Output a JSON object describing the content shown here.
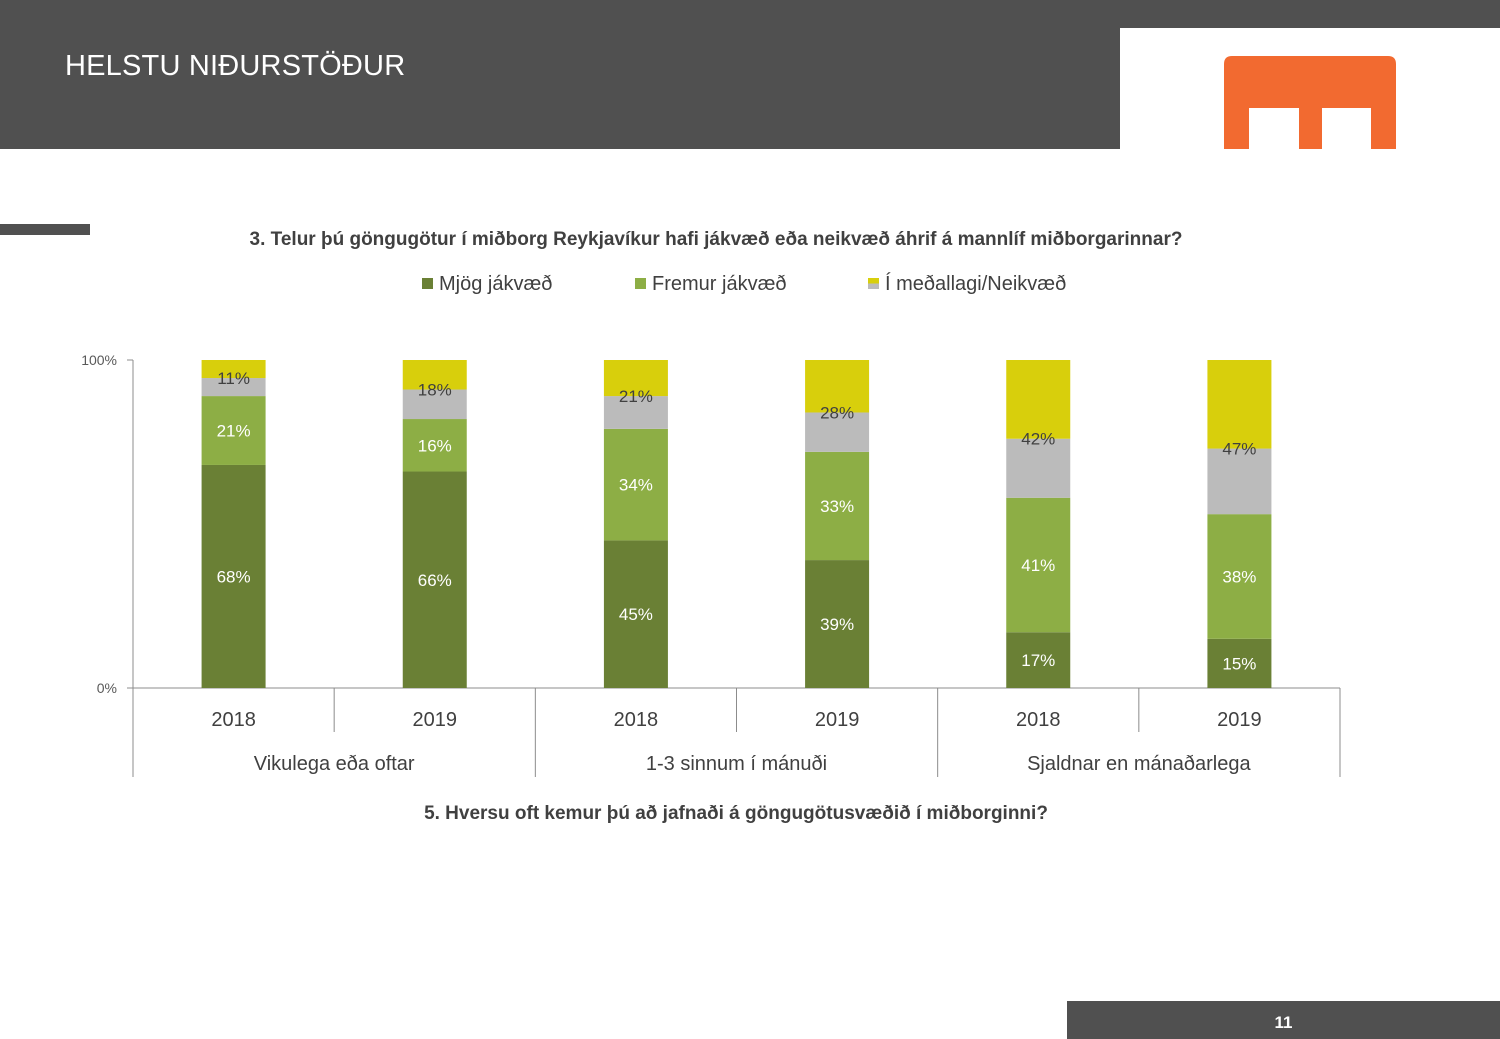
{
  "header": {
    "title": "HELSTU NIÐURSTÖÐUR"
  },
  "footer": {
    "page_number": "11"
  },
  "colors": {
    "header_bg": "#505050",
    "logo_orange": "#F26A30",
    "series": [
      "#6A8035",
      "#8DAE45",
      "#BBBBBB",
      "#D8CF0C"
    ]
  },
  "chart_data": {
    "type": "bar",
    "stacked": true,
    "title": "3. Telur þú göngugötur í miðborg Reykjavíkur hafi jákvæð eða neikvæð áhrif á mannlíf miðborgarinnar?",
    "xlabel": "5. Hversu oft kemur þú að jafnaði á göngugötusvæðið í miðborginni?",
    "ylabel": "",
    "ylim": [
      0,
      100
    ],
    "y_ticks": [
      "100%",
      "0%"
    ],
    "grid": false,
    "legend_position": "top",
    "legend": [
      {
        "label": "Mjög jákvæð",
        "color": "#6A8035"
      },
      {
        "label": "Fremur jákvæð",
        "color": "#8DAE45"
      },
      {
        "label": "Í meðallagi/Neikvæð",
        "color": "#D8CF0C"
      }
    ],
    "groups": [
      "Vikulega eða oftar",
      "1-3 sinnum í mánuði",
      "Sjaldnar en mánaðarlega"
    ],
    "categories": [
      "2018",
      "2019",
      "2018",
      "2019",
      "2018",
      "2019"
    ],
    "series": [
      {
        "name": "Mjög jákvæð",
        "values": [
          68,
          66,
          45,
          39,
          17,
          15
        ],
        "labels": [
          "68%",
          "66%",
          "45%",
          "39%",
          "17%",
          "15%"
        ]
      },
      {
        "name": "Fremur jákvæð",
        "values": [
          21,
          16,
          34,
          33,
          41,
          38
        ],
        "labels": [
          "21%",
          "16%",
          "34%",
          "33%",
          "41%",
          "38%"
        ]
      },
      {
        "values": [
          5.5,
          9,
          10,
          12,
          18,
          20
        ]
      },
      {
        "name": "Í meðallagi/Neikvæð",
        "values": [
          5.5,
          9,
          11,
          16,
          24,
          27
        ],
        "labels": [
          "11%",
          "18%",
          "21%",
          "28%",
          "42%",
          "47%"
        ]
      }
    ]
  }
}
